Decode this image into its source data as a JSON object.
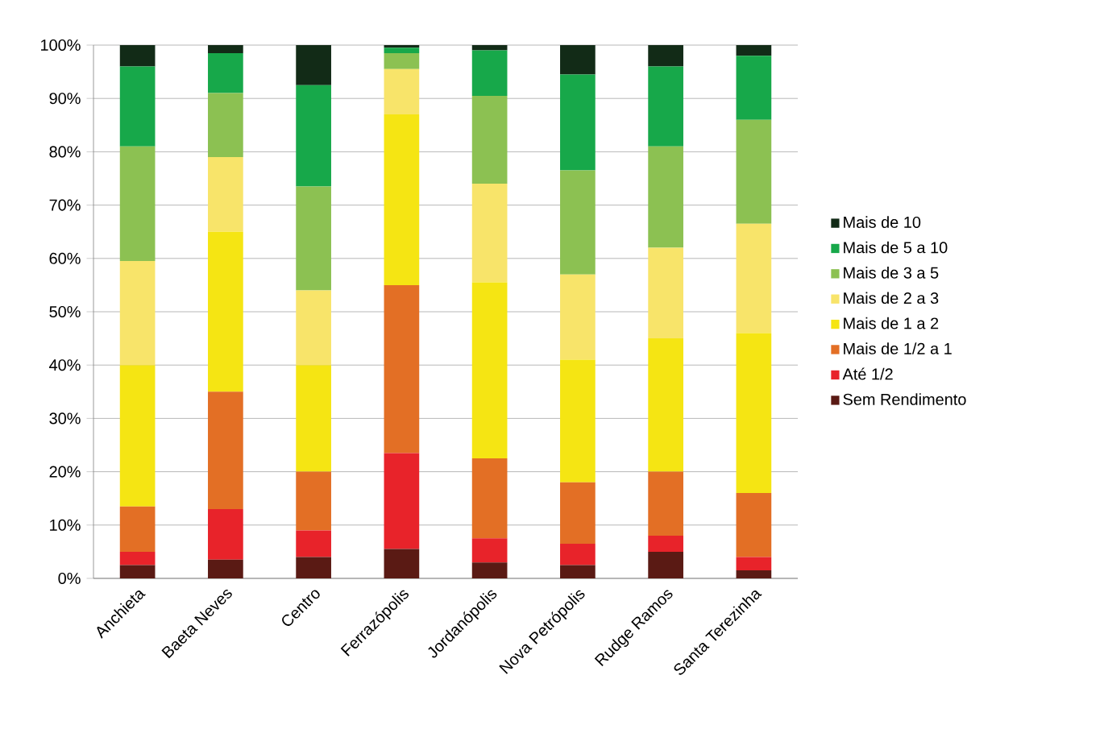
{
  "chart_data": {
    "type": "bar",
    "stacked": true,
    "categories": [
      "Anchieta",
      "Baeta Neves",
      "Centro",
      "Ferrazópolis",
      "Jordanópolis",
      "Nova Petrópolis",
      "Rudge Ramos",
      "Santa Terezinha"
    ],
    "series": [
      {
        "name": "Sem Rendimento",
        "color": "#5a1a14",
        "values": [
          2.5,
          3.5,
          4,
          5.5,
          3,
          2.5,
          5,
          1.5
        ]
      },
      {
        "name": "Até 1/2",
        "color": "#e8232a",
        "values": [
          2.5,
          9.5,
          5,
          18,
          4.5,
          4,
          3,
          2.5
        ]
      },
      {
        "name": "Mais de 1/2 a 1",
        "color": "#e36f25",
        "values": [
          8.5,
          22,
          11,
          31.5,
          15,
          11.5,
          12,
          12
        ]
      },
      {
        "name": "Mais de 1 a 2",
        "color": "#f5e513",
        "values": [
          26.5,
          30,
          20,
          32,
          33,
          23,
          25,
          30
        ]
      },
      {
        "name": "Mais de 2 a 3",
        "color": "#f8e46a",
        "values": [
          19.5,
          14,
          14,
          8.5,
          18.5,
          16,
          17,
          20.5
        ]
      },
      {
        "name": "Mais de 3 a 5",
        "color": "#8cc152",
        "values": [
          21.5,
          12,
          19.5,
          3,
          16.5,
          19.5,
          19,
          19.5
        ]
      },
      {
        "name": "Mais de 5 a 10",
        "color": "#17a84a",
        "values": [
          15,
          7.5,
          19,
          1,
          8.5,
          18,
          15,
          12
        ]
      },
      {
        "name": "Mais de 10",
        "color": "#122b17",
        "values": [
          4,
          1.5,
          7.5,
          0.5,
          1,
          5.5,
          4,
          2
        ]
      }
    ],
    "ylim": [
      0,
      100
    ],
    "yticks": [
      {
        "value": 0,
        "label": "0%"
      },
      {
        "value": 10,
        "label": "10%"
      },
      {
        "value": 20,
        "label": "20%"
      },
      {
        "value": 30,
        "label": "30%"
      },
      {
        "value": 40,
        "label": "40%"
      },
      {
        "value": 50,
        "label": "50%"
      },
      {
        "value": 60,
        "label": "60%"
      },
      {
        "value": 70,
        "label": "70%"
      },
      {
        "value": 80,
        "label": "80%"
      },
      {
        "value": 90,
        "label": "90%"
      },
      {
        "value": 100,
        "label": "100%"
      }
    ],
    "grid": "y",
    "legend": "right"
  }
}
